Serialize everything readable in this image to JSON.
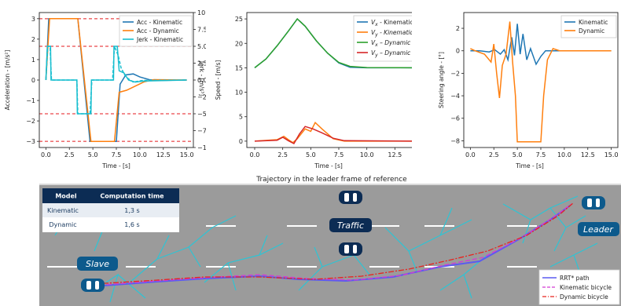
{
  "chart_data": [
    {
      "type": "line",
      "xlabel": "Time - [s]",
      "ylabel": "Acceleration - [m/s²]",
      "y2label": "Jerk - [m/s³]",
      "xlim": [
        -0.7,
        15.7
      ],
      "ylim": [
        -3.3,
        3.3
      ],
      "y2lim": [
        -10,
        10
      ],
      "x_ticks": [
        "0.0",
        "2.5",
        "5.0",
        "7.5",
        "10.0",
        "12.5",
        "15.0"
      ],
      "y_ticks": [
        "3",
        "2",
        "1",
        "0",
        "−1",
        "−2",
        "−3"
      ],
      "y2_ticks": [
        "10.0",
        "7.5",
        "5.0",
        "2.5",
        "0.0",
        "−2.5",
        "−5.0",
        "−7.5",
        "−10.0"
      ],
      "reference_lines_y": [
        3,
        1.65,
        -1.65,
        -3
      ],
      "legend_position": "top-right",
      "series": [
        {
          "name": "Acc - Kinematic",
          "color": "#1f77b4",
          "dash": "solid",
          "points": [
            [
              0,
              0
            ],
            [
              0.3,
              3
            ],
            [
              3.4,
              3
            ],
            [
              4.7,
              -3
            ],
            [
              7.5,
              -3
            ],
            [
              7.9,
              -0.2
            ],
            [
              8.5,
              0.25
            ],
            [
              9.3,
              0.3
            ],
            [
              10,
              0.15
            ],
            [
              11,
              0.02
            ],
            [
              12,
              -0.02
            ],
            [
              15,
              0
            ]
          ]
        },
        {
          "name": "Acc - Dynamic",
          "color": "#ff7f0e",
          "dash": "solid",
          "points": [
            [
              0,
              0
            ],
            [
              0.4,
              3
            ],
            [
              3.4,
              3
            ],
            [
              4.8,
              -3
            ],
            [
              7.3,
              -3
            ],
            [
              7.8,
              -0.6
            ],
            [
              8.6,
              -0.5
            ],
            [
              9.5,
              -0.3
            ],
            [
              10.5,
              -0.08
            ],
            [
              11.5,
              0.02
            ],
            [
              15,
              0
            ]
          ]
        },
        {
          "name": "Jerk - Kinematic",
          "color": "#17becf",
          "dash": "solid",
          "points": [
            [
              0,
              0
            ],
            [
              0.15,
              1.65
            ],
            [
              0.5,
              1.65
            ],
            [
              0.55,
              0
            ],
            [
              3.3,
              0
            ],
            [
              3.35,
              -1.65
            ],
            [
              4.8,
              -1.65
            ],
            [
              4.85,
              0
            ],
            [
              7.2,
              0
            ],
            [
              7.25,
              1.65
            ],
            [
              7.6,
              1.65
            ],
            [
              7.8,
              0.45
            ],
            [
              8.3,
              0.35
            ],
            [
              8.8,
              0
            ],
            [
              9.5,
              -0.1
            ],
            [
              10.5,
              -0.05
            ],
            [
              15,
              0
            ]
          ]
        },
        {
          "name": "",
          "color": "#17becf",
          "dash": "dashed",
          "points": [
            [
              0,
              0
            ],
            [
              0.2,
              1.65
            ],
            [
              0.45,
              1.65
            ],
            [
              0.6,
              0
            ],
            [
              3.3,
              0
            ],
            [
              3.4,
              -1.65
            ],
            [
              4.7,
              -1.65
            ],
            [
              4.9,
              0
            ],
            [
              7.1,
              0
            ],
            [
              7.3,
              1.65
            ],
            [
              7.7,
              1.2
            ],
            [
              8,
              0.6
            ],
            [
              8.5,
              0.15
            ],
            [
              9.3,
              -0.1
            ],
            [
              10.3,
              -0.02
            ],
            [
              15,
              0
            ]
          ]
        }
      ]
    },
    {
      "type": "line",
      "xlabel": "Time - [s]",
      "ylabel": "Speed - [m/s]",
      "xlim": [
        -0.7,
        15.7
      ],
      "ylim": [
        -1.3,
        26.3
      ],
      "x_ticks": [
        "0.0",
        "2.5",
        "5.0",
        "7.5",
        "10.0",
        "12.5",
        "15.0"
      ],
      "y_ticks": [
        "25",
        "20",
        "15",
        "10",
        "5",
        "0"
      ],
      "legend_position": "top-right",
      "series": [
        {
          "name": "Vx - Kinematic",
          "color": "#1f77b4",
          "dash": "solid",
          "points": [
            [
              0,
              15
            ],
            [
              1,
              16.8
            ],
            [
              2,
              19.5
            ],
            [
              3,
              22.5
            ],
            [
              3.8,
              25
            ],
            [
              4.5,
              23.5
            ],
            [
              5.5,
              20.5
            ],
            [
              6.5,
              18
            ],
            [
              7.5,
              16
            ],
            [
              8.5,
              15.1
            ],
            [
              10,
              15
            ],
            [
              15,
              15
            ]
          ]
        },
        {
          "name": "Vy - Kinematic",
          "color": "#ff7f0e",
          "dash": "solid",
          "points": [
            [
              0,
              0
            ],
            [
              2,
              0.3
            ],
            [
              2.6,
              1
            ],
            [
              3,
              0.3
            ],
            [
              3.4,
              -0.3
            ],
            [
              3.8,
              0.5
            ],
            [
              4.5,
              2.5
            ],
            [
              5,
              2
            ],
            [
              5.4,
              3.8
            ],
            [
              6,
              2.5
            ],
            [
              7,
              0.5
            ],
            [
              8,
              0
            ],
            [
              15,
              0
            ]
          ]
        },
        {
          "name": "Vx – Dynamic",
          "color": "#2ca02c",
          "dash": "solid",
          "points": [
            [
              0,
              15
            ],
            [
              1,
              16.8
            ],
            [
              2,
              19.5
            ],
            [
              3,
              22.5
            ],
            [
              3.8,
              25
            ],
            [
              4.5,
              23.5
            ],
            [
              5.5,
              20.5
            ],
            [
              6.5,
              18
            ],
            [
              7.5,
              16.1
            ],
            [
              8.5,
              15.3
            ],
            [
              10,
              15.05
            ],
            [
              15,
              15
            ]
          ]
        },
        {
          "name": "Vy – Dynamic",
          "color": "#d62728",
          "dash": "solid",
          "points": [
            [
              0,
              0
            ],
            [
              2,
              0.2
            ],
            [
              2.5,
              0.8
            ],
            [
              3,
              0.1
            ],
            [
              3.5,
              -0.5
            ],
            [
              4,
              1.5
            ],
            [
              4.5,
              3
            ],
            [
              5.2,
              2.5
            ],
            [
              6,
              1.7
            ],
            [
              7,
              0.6
            ],
            [
              8,
              0.1
            ],
            [
              15,
              0
            ]
          ]
        }
      ]
    },
    {
      "type": "line",
      "xlabel": "Time - [s]",
      "ylabel": "Steering angle - [°]",
      "xlim": [
        -0.7,
        15.7
      ],
      "ylim": [
        -8.6,
        3.4
      ],
      "x_ticks": [
        "0.0",
        "2.5",
        "5.0",
        "7.5",
        "10.0",
        "12.5",
        "15.0"
      ],
      "y_ticks": [
        "2",
        "0",
        "−2",
        "−4",
        "−6",
        "−8"
      ],
      "legend_position": "top-right",
      "series": [
        {
          "name": "Kinematic",
          "color": "#1f77b4",
          "dash": "solid",
          "points": [
            [
              0,
              0
            ],
            [
              1,
              0
            ],
            [
              2,
              -0.1
            ],
            [
              2.6,
              0.1
            ],
            [
              3.2,
              -0.3
            ],
            [
              3.6,
              0.1
            ],
            [
              4,
              -0.8
            ],
            [
              4.4,
              1.2
            ],
            [
              4.7,
              -0.4
            ],
            [
              5,
              2.4
            ],
            [
              5.3,
              -0.3
            ],
            [
              5.6,
              1.5
            ],
            [
              6,
              -0.8
            ],
            [
              6.4,
              0.2
            ],
            [
              7,
              -1.2
            ],
            [
              7.5,
              -0.5
            ],
            [
              8,
              0
            ],
            [
              9,
              0
            ],
            [
              15,
              0
            ]
          ]
        },
        {
          "name": "Dynamic",
          "color": "#ff7f0e",
          "dash": "solid",
          "points": [
            [
              0,
              0.2
            ],
            [
              0.5,
              0
            ],
            [
              1.5,
              -0.3
            ],
            [
              2.2,
              -1
            ],
            [
              2.5,
              0.6
            ],
            [
              2.8,
              -2
            ],
            [
              3.1,
              -4.2
            ],
            [
              3.4,
              -1.3
            ],
            [
              3.8,
              -0.3
            ],
            [
              4.2,
              2.6
            ],
            [
              4.5,
              -1
            ],
            [
              4.8,
              -4
            ],
            [
              5,
              -8.1
            ],
            [
              7.5,
              -8.1
            ],
            [
              7.8,
              -4
            ],
            [
              8.2,
              -0.8
            ],
            [
              8.8,
              0.2
            ],
            [
              9.5,
              0
            ],
            [
              15,
              0
            ]
          ]
        }
      ]
    }
  ],
  "scene": {
    "title": "Trajectory in the leader frame of reference",
    "table": {
      "headers": [
        "Model",
        "Computation time"
      ],
      "rows": [
        [
          "Kinematic",
          "1,3 s"
        ],
        [
          "Dynamic",
          "1,6 s"
        ]
      ]
    },
    "labels": {
      "slave": "Slave",
      "traffic": "Traffic",
      "leader": "Leader"
    },
    "legend": [
      "RRT* path",
      "Kinematic bicycle",
      "Dynamic bicycle"
    ]
  }
}
